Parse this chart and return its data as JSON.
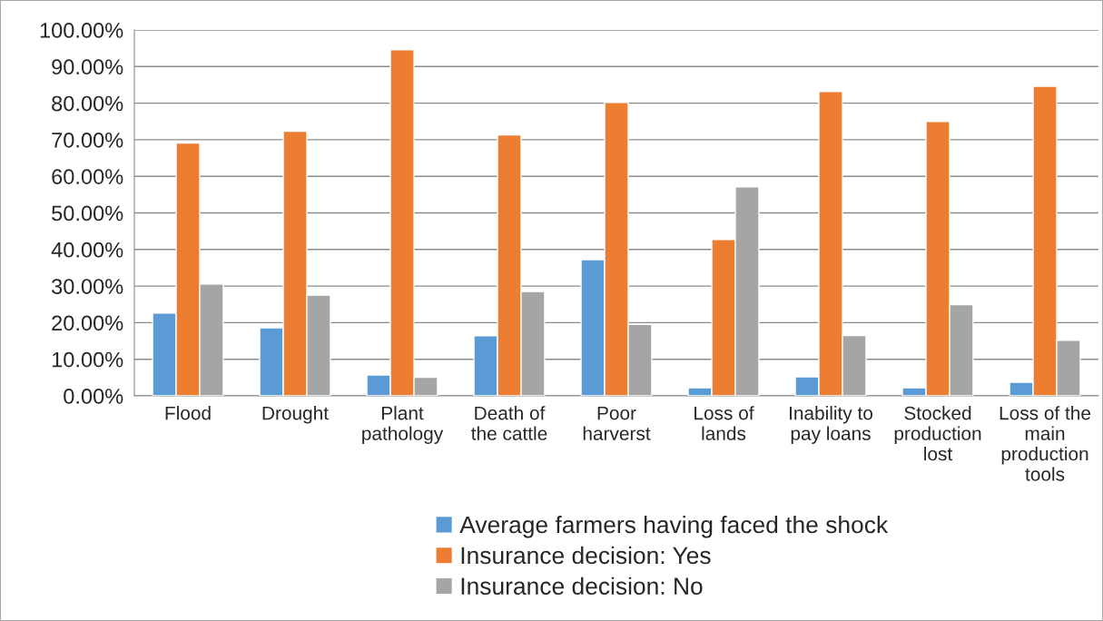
{
  "chart_data": {
    "type": "bar",
    "categories": [
      "Flood",
      "Drought",
      "Plant\npathology",
      "Death of\nthe cattle",
      "Poor\nharverst",
      "Loss of\nlands",
      "Inability to\npay loans",
      "Stocked\nproduction\nlost",
      "Loss of the\nmain\nproduction\ntools"
    ],
    "series": [
      {
        "name": "Average farmers having faced the shock",
        "color": "#5b9bd5",
        "values": [
          22.6,
          18.6,
          5.7,
          16.4,
          37.2,
          2.2,
          5.2,
          2.2,
          3.7
        ]
      },
      {
        "name": "Insurance decision: Yes",
        "color": "#ed7d31",
        "values": [
          69.1,
          72.3,
          94.6,
          71.3,
          80.2,
          42.7,
          83.2,
          75.0,
          84.6
        ]
      },
      {
        "name": "Insurance decision: No",
        "color": "#a5a5a5",
        "values": [
          30.6,
          27.5,
          5.1,
          28.5,
          19.5,
          57.1,
          16.5,
          24.9,
          15.2
        ]
      }
    ],
    "ylim": [
      0,
      100
    ],
    "yticks": [
      {
        "value": 0,
        "label": "0.00%"
      },
      {
        "value": 10,
        "label": "10.00%"
      },
      {
        "value": 20,
        "label": "20.00%"
      },
      {
        "value": 30,
        "label": "30.00%"
      },
      {
        "value": 40,
        "label": "40.00%"
      },
      {
        "value": 50,
        "label": "50.00%"
      },
      {
        "value": 60,
        "label": "60.00%"
      },
      {
        "value": 70,
        "label": "70.00%"
      },
      {
        "value": 80,
        "label": "80.00%"
      },
      {
        "value": 90,
        "label": "90.00%"
      },
      {
        "value": 100,
        "label": "100.00%"
      }
    ],
    "grid": "y",
    "legend": "bottom"
  }
}
